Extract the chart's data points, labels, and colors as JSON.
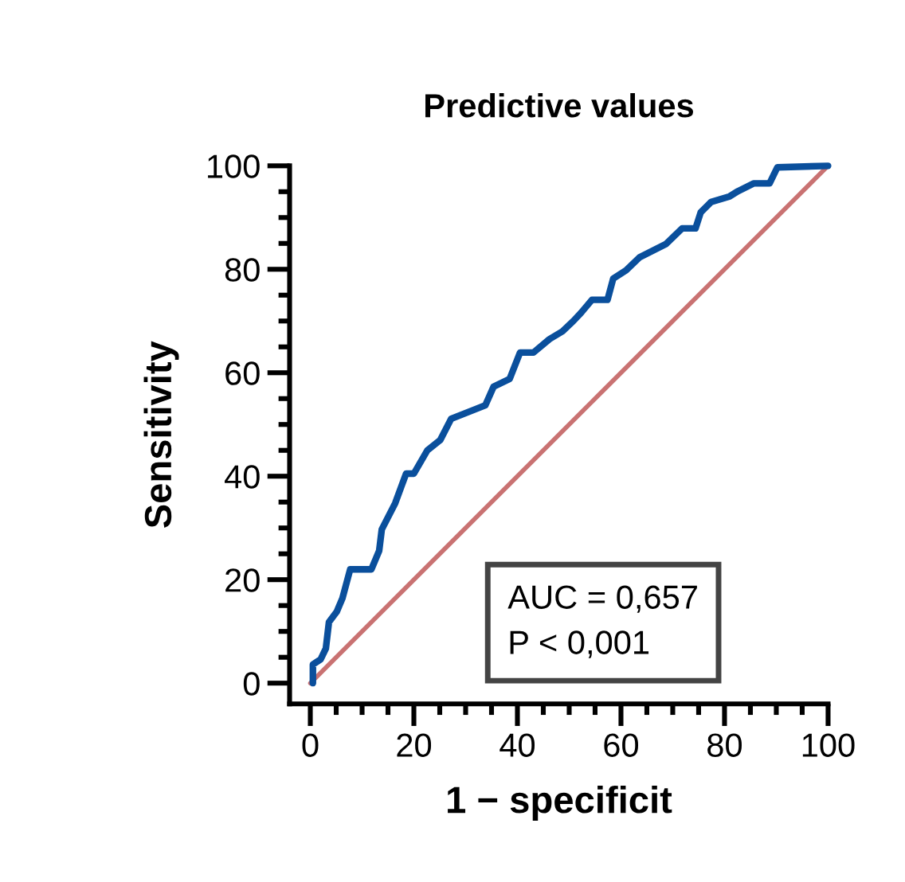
{
  "chart_data": {
    "type": "line",
    "title": "Predictive values",
    "xlabel": "1 − specificit",
    "ylabel": "Sensitivity",
    "xlim": [
      -4,
      100
    ],
    "ylim": [
      -4,
      100
    ],
    "xticks": [
      0,
      {
        "value": 5,
        "label": null
      },
      {
        "value": 10,
        "label": null
      },
      {
        "value": 15,
        "label": null
      },
      20,
      {
        "value": 25,
        "label": null
      },
      {
        "value": 30,
        "label": null
      },
      {
        "value": 35,
        "label": null
      },
      40,
      {
        "value": 45,
        "label": null
      },
      {
        "value": 50,
        "label": null
      },
      {
        "value": 55,
        "label": null
      },
      60,
      {
        "value": 65,
        "label": null
      },
      {
        "value": 70,
        "label": null
      },
      {
        "value": 75,
        "label": null
      },
      80,
      {
        "value": 85,
        "label": null
      },
      {
        "value": 90,
        "label": null
      },
      {
        "value": 95,
        "label": null
      },
      100
    ],
    "yticks": [
      0,
      {
        "value": 5,
        "label": null
      },
      {
        "value": 10,
        "label": null
      },
      {
        "value": 15,
        "label": null
      },
      20,
      {
        "value": 25,
        "label": null
      },
      {
        "value": 30,
        "label": null
      },
      {
        "value": 35,
        "label": null
      },
      40,
      {
        "value": 45,
        "label": null
      },
      {
        "value": 50,
        "label": null
      },
      {
        "value": 55,
        "label": null
      },
      60,
      {
        "value": 65,
        "label": null
      },
      {
        "value": 70,
        "label": null
      },
      {
        "value": 75,
        "label": null
      },
      80,
      {
        "value": 85,
        "label": null
      },
      {
        "value": 90,
        "label": null
      },
      {
        "value": 95,
        "label": null
      },
      100
    ],
    "grid": false,
    "legend": false,
    "marker": "none",
    "line_style": "solid",
    "series": [
      {
        "color": "#c97272",
        "x": [
          0,
          100
        ],
        "values": [
          0,
          100
        ]
      },
      {
        "color": "#0a4f9c",
        "x": [
          0.5,
          0.5,
          2,
          3,
          3.6,
          5.1,
          6.2,
          7.7,
          11.8,
          13.3,
          13.8,
          16.4,
          18.5,
          20,
          22.6,
          25.1,
          27.2,
          33.8,
          35.4,
          38.5,
          40.5,
          43.1,
          46.2,
          48.7,
          50.8,
          52.3,
          54.4,
          57.4,
          58.5,
          61,
          63.6,
          68.7,
          71.8,
          74.4,
          75.4,
          77.4,
          81,
          82.6,
          85.6,
          88.7,
          90.2,
          100
        ],
        "values": [
          0,
          3.6,
          4.6,
          6.7,
          11.8,
          13.8,
          16.4,
          22,
          22,
          25.6,
          29.7,
          34.8,
          40.5,
          40.5,
          45,
          47,
          51.1,
          53.7,
          57.3,
          58.8,
          63.9,
          63.9,
          66.5,
          68,
          70,
          71.6,
          74.1,
          74.1,
          78.2,
          79.8,
          82.3,
          84.9,
          87.9,
          87.9,
          91,
          93,
          94.1,
          95.1,
          96.6,
          96.6,
          99.7,
          100
        ]
      }
    ],
    "annotations": [
      "AUC = 0,657\nP < 0,001"
    ]
  }
}
